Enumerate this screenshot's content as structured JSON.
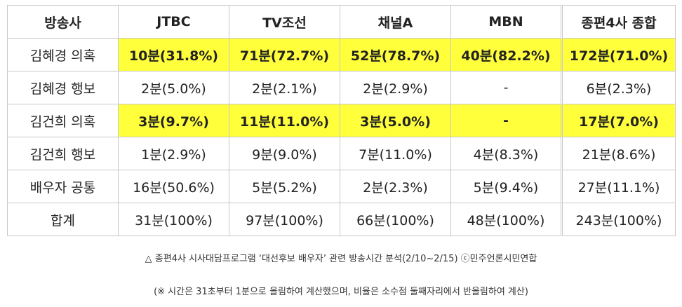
{
  "table": {
    "headers": [
      "방송사",
      "JTBC",
      "TV조선",
      "채널A",
      "MBN",
      "종편4사 종합"
    ],
    "rows": [
      {
        "label": "김혜경 의혹",
        "highlight": true,
        "cells": [
          "10분(31.8%)",
          "71분(72.7%)",
          "52분(78.7%)",
          "40분(82.2%)",
          "172분(71.0%)"
        ]
      },
      {
        "label": "김혜경 행보",
        "highlight": false,
        "cells": [
          "2분(5.0%)",
          "2분(2.1%)",
          "2분(2.9%)",
          "-",
          "6분(2.3%)"
        ]
      },
      {
        "label": "김건희 의혹",
        "highlight": true,
        "cells": [
          "3분(9.7%)",
          "11분(11.0%)",
          "3분(5.0%)",
          "-",
          "17분(7.0%)"
        ]
      },
      {
        "label": "김건희 행보",
        "highlight": false,
        "cells": [
          "1분(2.9%)",
          "9분(9.0%)",
          "7분(11.0%)",
          "4분(8.3%)",
          "21분(8.6%)"
        ]
      },
      {
        "label": "배우자 공통",
        "highlight": false,
        "cells": [
          "16분(50.6%)",
          "5분(5.2%)",
          "2분(2.3%)",
          "5분(9.4%)",
          "27분(11.1%)"
        ]
      },
      {
        "label": "합계",
        "highlight": false,
        "cells": [
          "31분(100%)",
          "97분(100%)",
          "66분(100%)",
          "48분(100%)",
          "243분(100%)"
        ]
      }
    ],
    "highlight_color": "#ffff3c"
  },
  "caption": "△ 종편4사 시사대담프로그램 ‘대선후보 배우자’ 관련 방송시간 분석(2/10~2/15) ⓒ민주언론시민연합",
  "note": "(※ 시간은 31초부터 1분으로 올림하여 계산했으며, 비율은 소수점 둘째자리에서 반올림하여 계산)"
}
